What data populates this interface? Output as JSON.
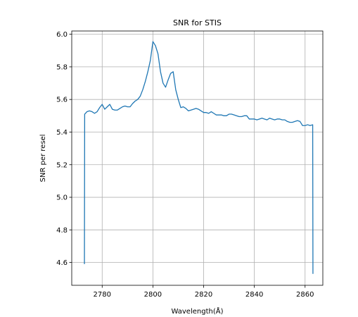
{
  "chart_data": {
    "type": "line",
    "title": "SNR for STIS",
    "xlabel": "Wavelength(Å)",
    "ylabel": "SNR per resel",
    "xlim": [
      2768,
      2867
    ],
    "ylim": [
      4.46,
      6.02
    ],
    "xticks": [
      2780,
      2800,
      2820,
      2840,
      2860
    ],
    "yticks": [
      4.6,
      4.8,
      5.0,
      5.2,
      5.4,
      5.6,
      5.8,
      6.0
    ],
    "ytick_labels": [
      "4.6",
      "4.8",
      "5.0",
      "5.2",
      "5.4",
      "5.6",
      "5.8",
      "6.0"
    ],
    "grid": true,
    "color": "#1f77b4",
    "series": [
      {
        "x": [
          2773.0,
          2773.1,
          2774.0,
          2775.0,
          2776.0,
          2777.0,
          2778.0,
          2779.0,
          2780.0,
          2781.0,
          2782.0,
          2783.0,
          2784.0,
          2785.0,
          2786.0,
          2787.0,
          2788.0,
          2789.0,
          2790.0,
          2791.0,
          2792.0,
          2793.0,
          2794.0,
          2795.0,
          2796.0,
          2797.0,
          2798.0,
          2799.0,
          2800.0,
          2801.0,
          2802.0,
          2803.0,
          2804.0,
          2805.0,
          2806.0,
          2807.0,
          2808.0,
          2809.0,
          2810.0,
          2811.0,
          2812.0,
          2813.0,
          2814.0,
          2815.0,
          2816.0,
          2817.0,
          2818.0,
          2819.0,
          2820.0,
          2821.0,
          2822.0,
          2823.0,
          2824.0,
          2825.0,
          2826.0,
          2827.0,
          2828.0,
          2829.0,
          2830.0,
          2831.0,
          2832.0,
          2833.0,
          2834.0,
          2835.0,
          2836.0,
          2837.0,
          2838.0,
          2839.0,
          2840.0,
          2841.0,
          2842.0,
          2843.0,
          2844.0,
          2845.0,
          2846.0,
          2847.0,
          2848.0,
          2849.0,
          2850.0,
          2851.0,
          2852.0,
          2853.0,
          2854.0,
          2855.0,
          2856.0,
          2857.0,
          2858.0,
          2859.0,
          2860.0,
          2861.0,
          2862.0,
          2863.0,
          2863.1
        ],
        "y": [
          4.59,
          5.51,
          5.525,
          5.53,
          5.525,
          5.515,
          5.525,
          5.55,
          5.57,
          5.54,
          5.555,
          5.57,
          5.54,
          5.535,
          5.535,
          5.545,
          5.555,
          5.56,
          5.555,
          5.555,
          5.575,
          5.59,
          5.6,
          5.62,
          5.66,
          5.71,
          5.77,
          5.84,
          5.955,
          5.93,
          5.88,
          5.77,
          5.7,
          5.675,
          5.72,
          5.76,
          5.77,
          5.66,
          5.6,
          5.55,
          5.555,
          5.545,
          5.53,
          5.535,
          5.54,
          5.545,
          5.54,
          5.53,
          5.52,
          5.52,
          5.515,
          5.525,
          5.515,
          5.505,
          5.505,
          5.505,
          5.5,
          5.5,
          5.51,
          5.51,
          5.505,
          5.5,
          5.495,
          5.495,
          5.5,
          5.5,
          5.48,
          5.48,
          5.48,
          5.475,
          5.48,
          5.485,
          5.48,
          5.475,
          5.485,
          5.48,
          5.475,
          5.48,
          5.48,
          5.475,
          5.475,
          5.465,
          5.46,
          5.46,
          5.465,
          5.47,
          5.465,
          5.44,
          5.44,
          5.445,
          5.44,
          5.445,
          4.53
        ]
      }
    ]
  }
}
